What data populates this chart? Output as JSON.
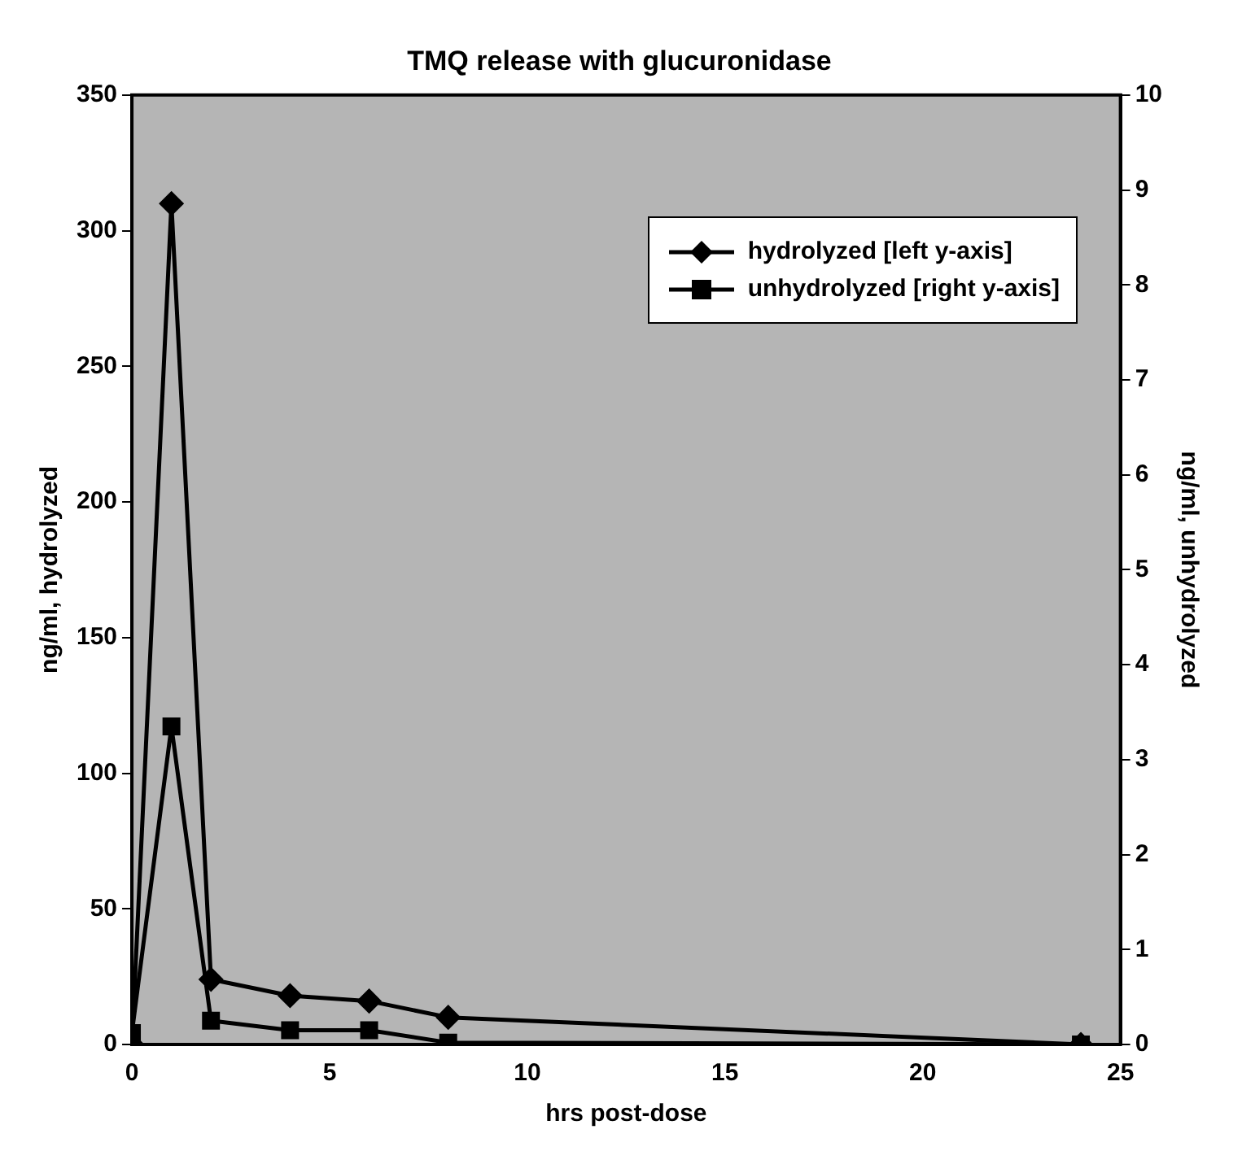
{
  "chart_data": {
    "type": "line",
    "title": "TMQ release with glucuronidase",
    "xlabel": "hrs post-dose",
    "ylabel": "ng/ml, hydrolyzed",
    "y2label": "ng/ml, unhydrolyzed",
    "x": [
      0,
      1,
      2,
      4,
      6,
      8,
      24
    ],
    "series": [
      {
        "name": "hydrolyzed [left y-axis]",
        "color": "#000000",
        "marker": "diamond",
        "values": [
          0,
          310,
          24,
          18,
          16,
          10,
          0
        ]
      },
      {
        "name": "unhydrolyzed [right y-axis]",
        "color": "#000000",
        "marker": "square",
        "axis": "y2",
        "values": [
          0.12,
          3.35,
          0.25,
          0.15,
          0.15,
          0.02,
          0
        ]
      }
    ],
    "xlim": [
      0,
      25
    ],
    "xticks": [
      0,
      5,
      10,
      15,
      20,
      25
    ],
    "ylim": [
      0,
      350
    ],
    "yticks": [
      0,
      50,
      100,
      150,
      200,
      250,
      300,
      350
    ],
    "y2lim": [
      0,
      10
    ],
    "y2ticks": [
      0,
      1,
      2,
      3,
      4,
      5,
      6,
      7,
      8,
      9,
      10
    ],
    "grid": false,
    "legend": "top right",
    "line_style": "solid"
  }
}
